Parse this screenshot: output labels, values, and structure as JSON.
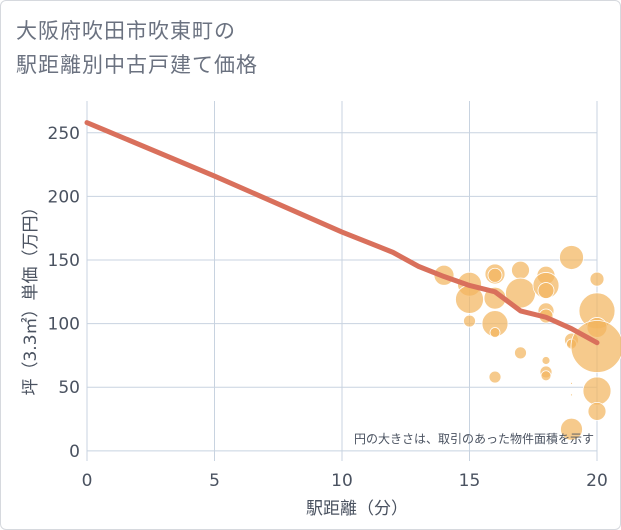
{
  "chart_data": {
    "type": "scatter",
    "title_line1": "大阪府吹田市吹東町の",
    "title_line2": "駅距離別中古戸建て価格",
    "xlabel": "駅距離（分）",
    "ylabel": "坪（3.3㎡）単価（万円）",
    "note": "円の大きさは、取引のあった物件面積を示す",
    "xlim": [
      0,
      20
    ],
    "ylim": [
      -8,
      275
    ],
    "xticks": [
      0,
      5,
      10,
      15,
      20
    ],
    "yticks": [
      0,
      50,
      100,
      150,
      200,
      250
    ],
    "grid": true,
    "colors": {
      "line": "#d9705c",
      "bubble": "#f2b560",
      "grid": "#c8d3e0"
    },
    "trend_line": {
      "x": [
        0,
        5,
        10,
        12,
        13,
        14,
        15,
        16,
        17,
        18,
        19,
        20
      ],
      "y": [
        258,
        216,
        172,
        156,
        145,
        137,
        130,
        125,
        110,
        105,
        96,
        85
      ]
    },
    "points": [
      {
        "x": 14.0,
        "y": 138,
        "s": 10
      },
      {
        "x": 15.0,
        "y": 131,
        "s": 12
      },
      {
        "x": 15.0,
        "y": 119,
        "s": 14
      },
      {
        "x": 15.0,
        "y": 102,
        "s": 6
      },
      {
        "x": 16.0,
        "y": 139,
        "s": 10
      },
      {
        "x": 16.0,
        "y": 138,
        "s": 7
      },
      {
        "x": 16.0,
        "y": 120,
        "s": 11
      },
      {
        "x": 16.0,
        "y": 100,
        "s": 13
      },
      {
        "x": 16.0,
        "y": 93,
        "s": 5
      },
      {
        "x": 16.0,
        "y": 58,
        "s": 6
      },
      {
        "x": 17.0,
        "y": 142,
        "s": 9
      },
      {
        "x": 17.0,
        "y": 124,
        "s": 15
      },
      {
        "x": 17.0,
        "y": 77,
        "s": 6
      },
      {
        "x": 18.0,
        "y": 138,
        "s": 9
      },
      {
        "x": 18.0,
        "y": 130,
        "s": 13
      },
      {
        "x": 18.0,
        "y": 126,
        "s": 8
      },
      {
        "x": 18.0,
        "y": 110,
        "s": 8
      },
      {
        "x": 18.0,
        "y": 106,
        "s": 7
      },
      {
        "x": 18.0,
        "y": 71,
        "s": 4
      },
      {
        "x": 18.0,
        "y": 62,
        "s": 6
      },
      {
        "x": 18.0,
        "y": 59,
        "s": 5
      },
      {
        "x": 19.0,
        "y": 152,
        "s": 12
      },
      {
        "x": 19.0,
        "y": 87,
        "s": 7
      },
      {
        "x": 19.0,
        "y": 84,
        "s": 5
      },
      {
        "x": 19.0,
        "y": 53,
        "s": 1
      },
      {
        "x": 19.0,
        "y": 44,
        "s": 1
      },
      {
        "x": 19.0,
        "y": 17,
        "s": 11
      },
      {
        "x": 20.0,
        "y": 135,
        "s": 7
      },
      {
        "x": 20.0,
        "y": 110,
        "s": 18
      },
      {
        "x": 20.0,
        "y": 97,
        "s": 10
      },
      {
        "x": 20.0,
        "y": 82,
        "s": 26
      },
      {
        "x": 20.0,
        "y": 47,
        "s": 14
      },
      {
        "x": 20.0,
        "y": 31,
        "s": 9
      }
    ]
  }
}
